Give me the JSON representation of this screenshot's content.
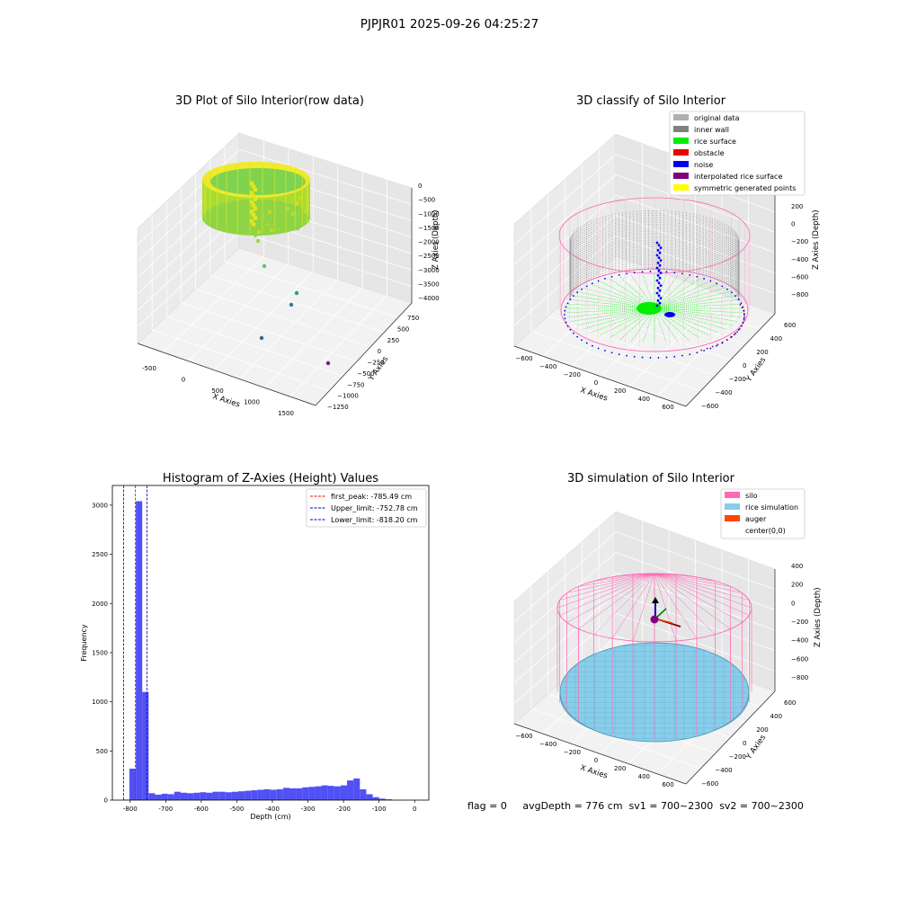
{
  "figure_title": "PJPJR01 2025-09-26 04:25:27",
  "status_line": "flag = 0     avgDepth = 776 cm  sv1 = 700~2300  sv2 = 700~2300",
  "colors": {
    "hist_bar": "#5050f5",
    "first_peak": "#ff0000",
    "limit_line": "#0000bb",
    "silo": "#ff69b4",
    "rice_simulation": "#87ceeb",
    "auger": "#ff4500",
    "inner_wall": "#808080",
    "rice_surface": "#00ee00",
    "noise": "#0000ee",
    "interpolated": "#800080",
    "symmetric": "#ffff00",
    "original": "#b0b0b0"
  },
  "chart_data": [
    {
      "type": "scatter",
      "subtype": "3d",
      "title": "3D Plot of Silo Interior(row data)",
      "xlabel": "X Axies",
      "ylabel": "Y Axies",
      "zlabel": "Z Axies (Depth)",
      "x_ticks": [
        "-500",
        "0",
        "500",
        "1000",
        "1500"
      ],
      "y_ticks": [
        "750",
        "500",
        "250",
        "0",
        "−250",
        "−500",
        "−750",
        "−1000",
        "−1250"
      ],
      "z_ticks": [
        "0",
        "−500",
        "−1000",
        "−1500",
        "−2000",
        "−2500",
        "−3000",
        "−3500",
        "−4000"
      ],
      "colormap": "viridis",
      "grid": true
    },
    {
      "type": "scatter",
      "subtype": "3d",
      "title": "3D classify of Silo Interior",
      "xlabel": "X Axies",
      "ylabel": "Y Axies",
      "zlabel": "Z Axies (Depth)",
      "x_ticks": [
        "−600",
        "−400",
        "−200",
        "0",
        "200",
        "400",
        "600"
      ],
      "y_ticks": [
        "600",
        "400",
        "200",
        "0",
        "−200",
        "−400",
        "−600"
      ],
      "z_ticks": [
        "200",
        "0",
        "−200",
        "−400",
        "−600",
        "−800"
      ],
      "z_ticks_partial": [
        "00"
      ],
      "legend": [
        "original data",
        "inner wall",
        "rice surface",
        "obstacle",
        "noise",
        "interpolated rice surface",
        "symmetric generated points"
      ],
      "legend_colors": [
        "#b0b0b0",
        "#808080",
        "#00ee00",
        "#ee0000",
        "#0000ee",
        "#800080",
        "#ffff00"
      ],
      "legend_position": "top-right",
      "grid": true
    },
    {
      "type": "bar",
      "subtype": "histogram",
      "title": "Histogram of Z-Axies (Height) Values",
      "xlabel": "Depth (cm)",
      "ylabel": "Frequency",
      "xlim": [
        -850,
        40
      ],
      "ylim": [
        0,
        3200
      ],
      "x_ticks": [
        -800,
        -700,
        -600,
        -500,
        -400,
        -300,
        -200,
        -100,
        0
      ],
      "y_ticks": [
        0,
        500,
        1000,
        1500,
        2000,
        2500,
        3000
      ],
      "bin_start": -820,
      "bin_width": 18,
      "values": [
        5,
        320,
        3040,
        1100,
        70,
        55,
        65,
        60,
        85,
        75,
        70,
        75,
        80,
        75,
        85,
        85,
        80,
        85,
        90,
        95,
        100,
        105,
        110,
        105,
        110,
        125,
        120,
        120,
        130,
        135,
        140,
        150,
        145,
        140,
        150,
        200,
        220,
        110,
        60,
        30,
        15,
        8
      ],
      "vlines": [
        {
          "value": -785.49,
          "label": "first_peak: -785.49 cm",
          "color": "#ff0000"
        },
        {
          "value": -752.78,
          "label": "Upper_limit: -752.78 cm",
          "color": "#0000bb"
        },
        {
          "value": -818.2,
          "label": "Lower_limit: -818.20 cm",
          "color": "#0000bb"
        }
      ],
      "legend_position": "top-right"
    },
    {
      "type": "scatter",
      "subtype": "3d",
      "title": "3D simulation of Silo Interior",
      "xlabel": "X Axies",
      "ylabel": "Y Axies",
      "zlabel": "Z Axies (Depth)",
      "x_ticks": [
        "−600",
        "−400",
        "−200",
        "0",
        "200",
        "400",
        "600"
      ],
      "y_ticks": [
        "600",
        "400",
        "200",
        "0",
        "−200",
        "−400",
        "−600"
      ],
      "z_ticks": [
        "400",
        "200",
        "0",
        "−200",
        "−400",
        "−600",
        "−800"
      ],
      "legend": [
        "silo",
        "rice simulation",
        "auger",
        "center(0,0)"
      ],
      "legend_colors": [
        "#ff69b4",
        "#87ceeb",
        "#ff4500",
        ""
      ],
      "legend_position": "top-right",
      "grid": true
    }
  ]
}
